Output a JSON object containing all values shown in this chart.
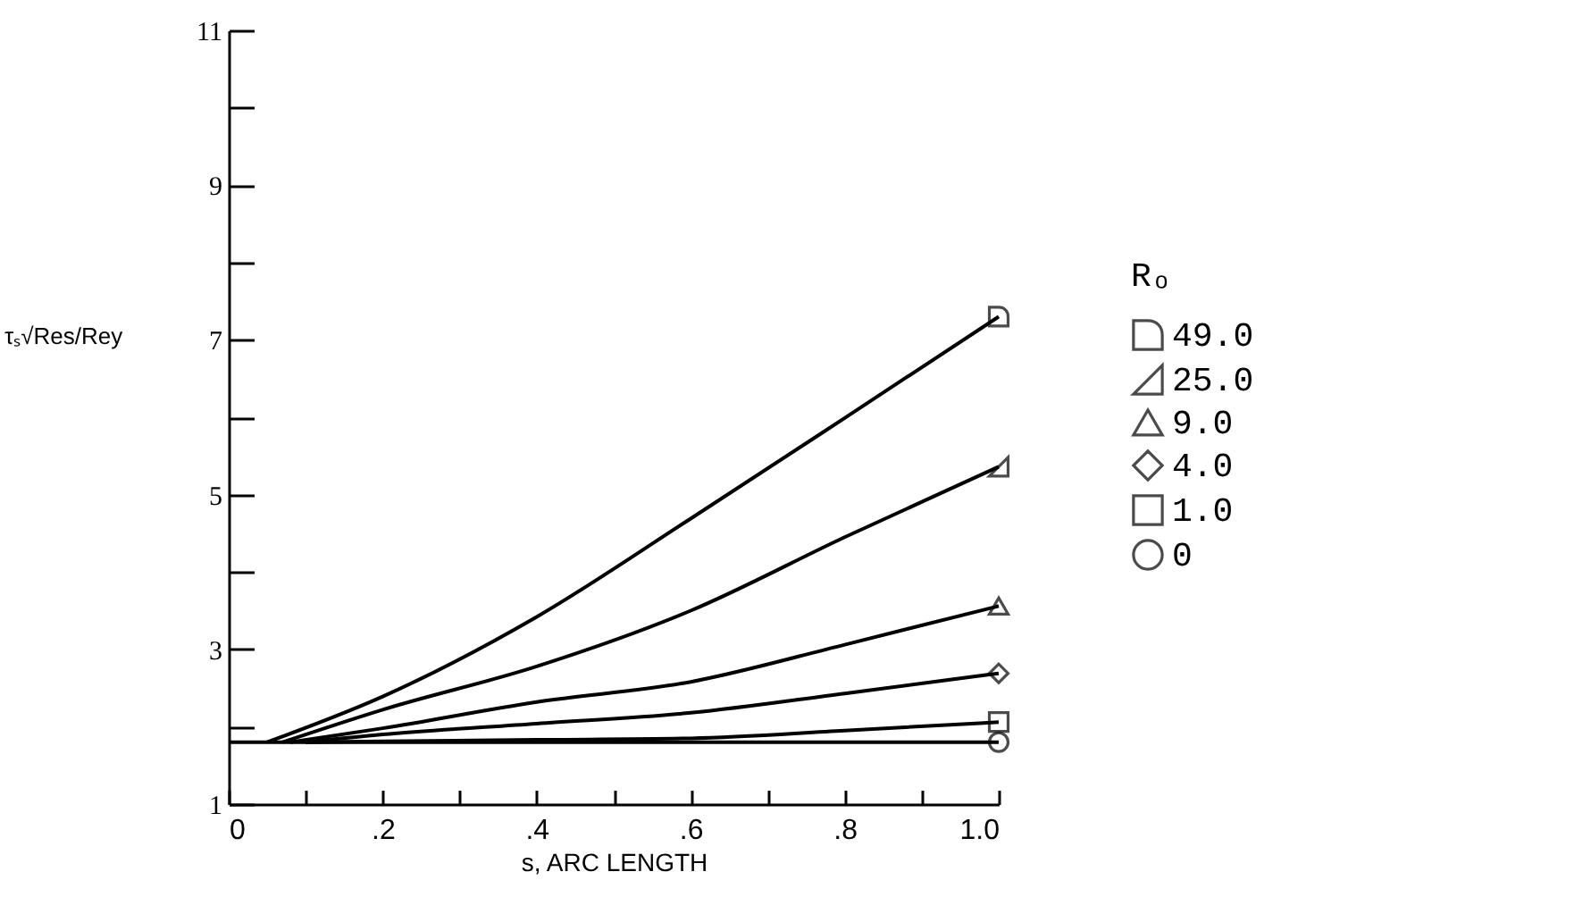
{
  "chart_data": {
    "type": "line",
    "xlabel": "s, ARC LENGTH",
    "ylabel": "τₛ√Res/Rey",
    "legend_title": "Rₒ",
    "legend": "right",
    "line_style": "solid",
    "xlim": [
      0,
      1.0
    ],
    "ylim": [
      1,
      11
    ],
    "xticks": [
      0,
      {
        "value": 0.1,
        "label": null
      },
      {
        "value": 0.2,
        "label": ".2"
      },
      {
        "value": 0.3,
        "label": null
      },
      {
        "value": 0.4,
        "label": ".4"
      },
      {
        "value": 0.5,
        "label": null
      },
      {
        "value": 0.6,
        "label": ".6"
      },
      {
        "value": 0.7,
        "label": null
      },
      {
        "value": 0.8,
        "label": ".8"
      },
      {
        "value": 0.9,
        "label": null
      },
      {
        "value": 1.0,
        "label": "1.0"
      }
    ],
    "yticks": [
      1,
      {
        "value": 2,
        "label": null
      },
      3,
      {
        "value": 4,
        "label": null
      },
      5,
      {
        "value": 6,
        "label": null
      },
      7,
      {
        "value": 8,
        "label": null
      },
      9,
      {
        "value": 10,
        "label": null
      },
      11
    ],
    "series": [
      {
        "name": "49.0",
        "color": "#000000",
        "x": [
          0.05,
          0.2,
          0.4,
          0.6,
          0.8,
          1.0
        ],
        "values": [
          1.8,
          2.39,
          3.42,
          4.69,
          5.99,
          7.3
        ]
      },
      {
        "name": "25.0",
        "color": "#000000",
        "x": [
          0.07,
          0.2,
          0.4,
          0.6,
          0.8,
          1.0
        ],
        "values": [
          1.8,
          2.22,
          2.78,
          3.5,
          4.45,
          5.36
        ]
      },
      {
        "name": "9.0",
        "color": "#000000",
        "x": [
          0.08,
          0.2,
          0.4,
          0.6,
          0.8,
          1.0
        ],
        "values": [
          1.8,
          1.98,
          2.32,
          2.58,
          3.06,
          3.56
        ]
      },
      {
        "name": "4.0",
        "color": "#000000",
        "x": [
          0.1,
          0.2,
          0.4,
          0.6,
          0.8,
          1.0
        ],
        "values": [
          1.8,
          1.9,
          2.04,
          2.18,
          2.43,
          2.69
        ]
      },
      {
        "name": "1.0",
        "color": "#000000",
        "x": [
          0.1,
          0.4,
          0.6,
          0.8,
          1.0
        ],
        "values": [
          1.8,
          1.83,
          1.85,
          1.95,
          2.06
        ]
      },
      {
        "name": "0",
        "color": "#000000",
        "x": [
          0,
          1.0
        ],
        "values": [
          1.8,
          1.8
        ]
      }
    ]
  }
}
